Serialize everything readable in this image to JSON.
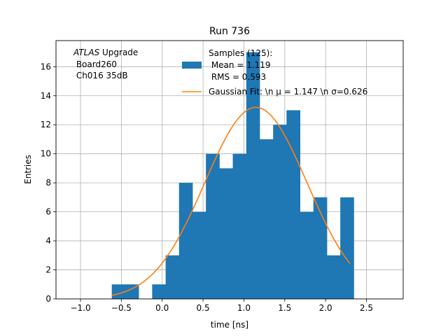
{
  "chart_data": {
    "type": "bar",
    "title": "Run 736",
    "xlabel": "time [ns]",
    "ylabel": "Entries",
    "xlim": [
      -1.3,
      2.95
    ],
    "ylim": [
      0,
      17.8
    ],
    "grid": true,
    "x_ticks": [
      -1.0,
      -0.5,
      0.0,
      0.5,
      1.0,
      1.5,
      2.0,
      2.5
    ],
    "x_tick_labels": [
      "−1.0",
      "−0.5",
      "0.0",
      "0.5",
      "1.0",
      "1.5",
      "2.0",
      "2.5"
    ],
    "y_ticks": [
      0,
      2,
      4,
      6,
      8,
      10,
      12,
      14,
      16
    ],
    "y_tick_labels": [
      "0",
      "2",
      "4",
      "6",
      "8",
      "10",
      "12",
      "14",
      "16"
    ],
    "annotation": {
      "italic": "ATLAS",
      "rest": " Upgrade",
      "line2": " Board260",
      "line3": " Ch016 35dB"
    },
    "legend_position": "top-right",
    "histogram": {
      "name_lines": [
        "Samples (125):",
        " Mean = 1.119",
        " RMS = 0.593"
      ],
      "color": "#1f77b4",
      "bins": [
        {
          "x0": -0.617,
          "x1": -0.452,
          "count": 1
        },
        {
          "x0": -0.452,
          "x1": -0.288,
          "count": 1
        },
        {
          "x0": -0.288,
          "x1": -0.123,
          "count": 0
        },
        {
          "x0": -0.123,
          "x1": 0.042,
          "count": 1
        },
        {
          "x0": 0.042,
          "x1": 0.206,
          "count": 3
        },
        {
          "x0": 0.206,
          "x1": 0.371,
          "count": 8
        },
        {
          "x0": 0.371,
          "x1": 0.535,
          "count": 6
        },
        {
          "x0": 0.535,
          "x1": 0.7,
          "count": 10
        },
        {
          "x0": 0.7,
          "x1": 0.864,
          "count": 9
        },
        {
          "x0": 0.864,
          "x1": 1.029,
          "count": 10
        },
        {
          "x0": 1.029,
          "x1": 1.193,
          "count": 17
        },
        {
          "x0": 1.193,
          "x1": 1.358,
          "count": 11
        },
        {
          "x0": 1.358,
          "x1": 1.522,
          "count": 12
        },
        {
          "x0": 1.522,
          "x1": 1.687,
          "count": 13
        },
        {
          "x0": 1.687,
          "x1": 1.851,
          "count": 6
        },
        {
          "x0": 1.851,
          "x1": 2.016,
          "count": 7
        },
        {
          "x0": 2.016,
          "x1": 2.18,
          "count": 3
        },
        {
          "x0": 2.18,
          "x1": 2.345,
          "count": 7
        }
      ]
    },
    "fit": {
      "name": "Gaussian Fit: \\n μ = 1.147 \\n σ=0.626",
      "color": "#ff7f0e",
      "amplitude": 13.2,
      "mean": 1.147,
      "sigma": 0.626,
      "x_range": [
        -0.617,
        2.299
      ]
    }
  }
}
